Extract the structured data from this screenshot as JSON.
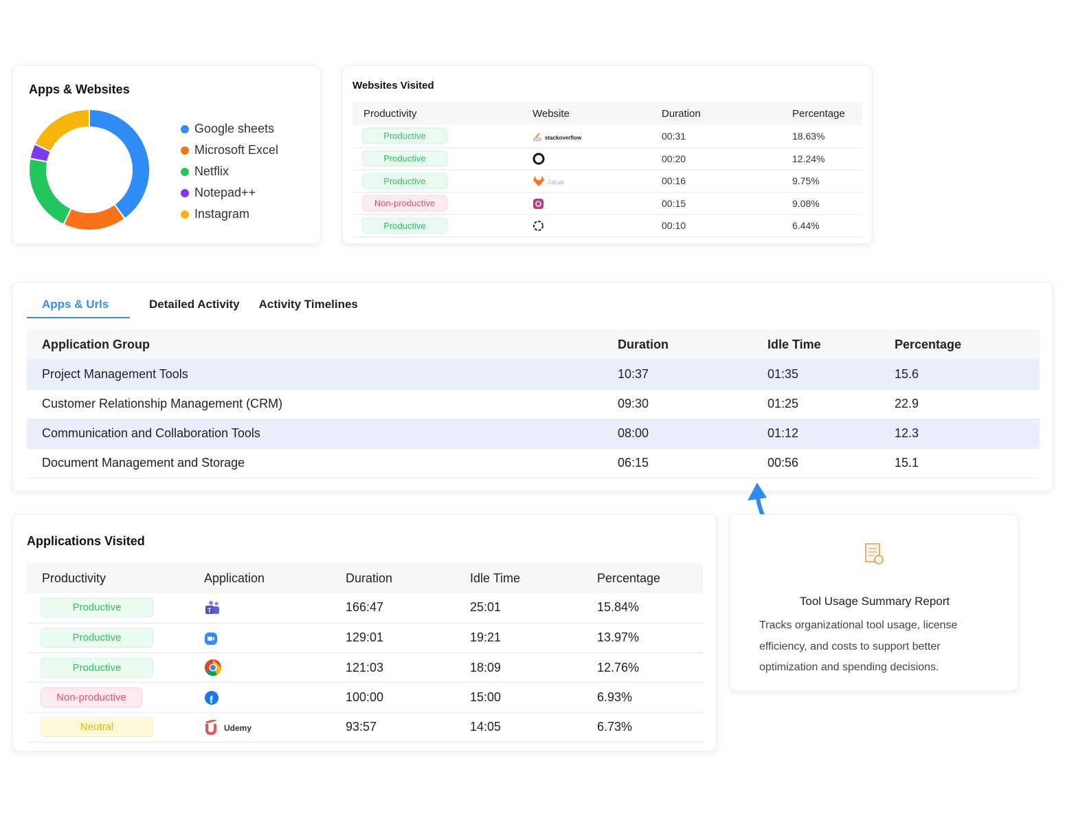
{
  "apps_websites": {
    "title": "Apps & Websites",
    "chart_data": {
      "type": "pie",
      "title": "Apps & Websites",
      "categories": [
        "Google sheets",
        "Microsoft Excel",
        "Netflix",
        "Notepad++",
        "Instagram"
      ],
      "values": [
        40,
        17,
        21,
        4,
        18
      ],
      "colors": [
        "#2f8bf5",
        "#f97316",
        "#22c55e",
        "#7c3aed",
        "#f5b50a"
      ],
      "legend": "right"
    }
  },
  "websites": {
    "title": "Websites Visited",
    "headers": [
      "Productivity",
      "Website",
      "Duration",
      "Percentage"
    ],
    "rows": [
      {
        "status": "Productive",
        "site": "stackoverflow",
        "icon": "stackoverflow-icon",
        "duration": "00:31",
        "pct": "18.63%"
      },
      {
        "status": "Productive",
        "site": "",
        "icon": "github-icon",
        "duration": "00:20",
        "pct": "12.24%"
      },
      {
        "status": "Productive",
        "site": "GitLab",
        "icon": "gitlab-icon",
        "duration": "00:16",
        "pct": "9.75%"
      },
      {
        "status": "Non-productive",
        "site": "",
        "icon": "instagram-icon",
        "duration": "00:15",
        "pct": "9.08%"
      },
      {
        "status": "Productive",
        "site": "",
        "icon": "openai-icon",
        "duration": "00:10",
        "pct": "6.44%"
      }
    ]
  },
  "activity": {
    "tabs": [
      "Apps & Urls",
      "Detailed Activity",
      "Activity Timelines"
    ],
    "headers": [
      "Application Group",
      "Duration",
      "Idle Time",
      "Percentage"
    ],
    "rows": [
      {
        "group": "Project Management Tools",
        "duration": "10:37",
        "idle": "01:35",
        "pct": "15.6"
      },
      {
        "group": "Customer Relationship Management (CRM)",
        "duration": "09:30",
        "idle": "01:25",
        "pct": "22.9"
      },
      {
        "group": "Communication and Collaboration Tools",
        "duration": "08:00",
        "idle": "01:12",
        "pct": "12.3"
      },
      {
        "group": "Document Management and Storage",
        "duration": "06:15",
        "idle": "00:56",
        "pct": "15.1"
      }
    ]
  },
  "applications": {
    "title": "Applications Visited",
    "headers": [
      "Productivity",
      "Application",
      "Duration",
      "Idle Time",
      "Percentage"
    ],
    "rows": [
      {
        "status": "Productive",
        "icon": "teams-icon",
        "app": "",
        "duration": "166:47",
        "idle": "25:01",
        "pct": "15.84%"
      },
      {
        "status": "Productive",
        "icon": "zoom-icon",
        "app": "",
        "duration": "129:01",
        "idle": "19:21",
        "pct": "13.97%"
      },
      {
        "status": "Productive",
        "icon": "chrome-icon",
        "app": "",
        "duration": "121:03",
        "idle": "18:09",
        "pct": "12.76%"
      },
      {
        "status": "Non-productive",
        "icon": "facebook-icon",
        "app": "",
        "duration": "100:00",
        "idle": "15:00",
        "pct": "6.93%"
      },
      {
        "status": "Neutral",
        "icon": "udemy-icon",
        "app": "Udemy",
        "duration": "93:57",
        "idle": "14:05",
        "pct": "6.73%"
      }
    ]
  },
  "summary": {
    "title": "Tool Usage Summary Report",
    "text": "Tracks organizational tool usage, license efficiency, and costs to support better optimization and spending decisions."
  }
}
